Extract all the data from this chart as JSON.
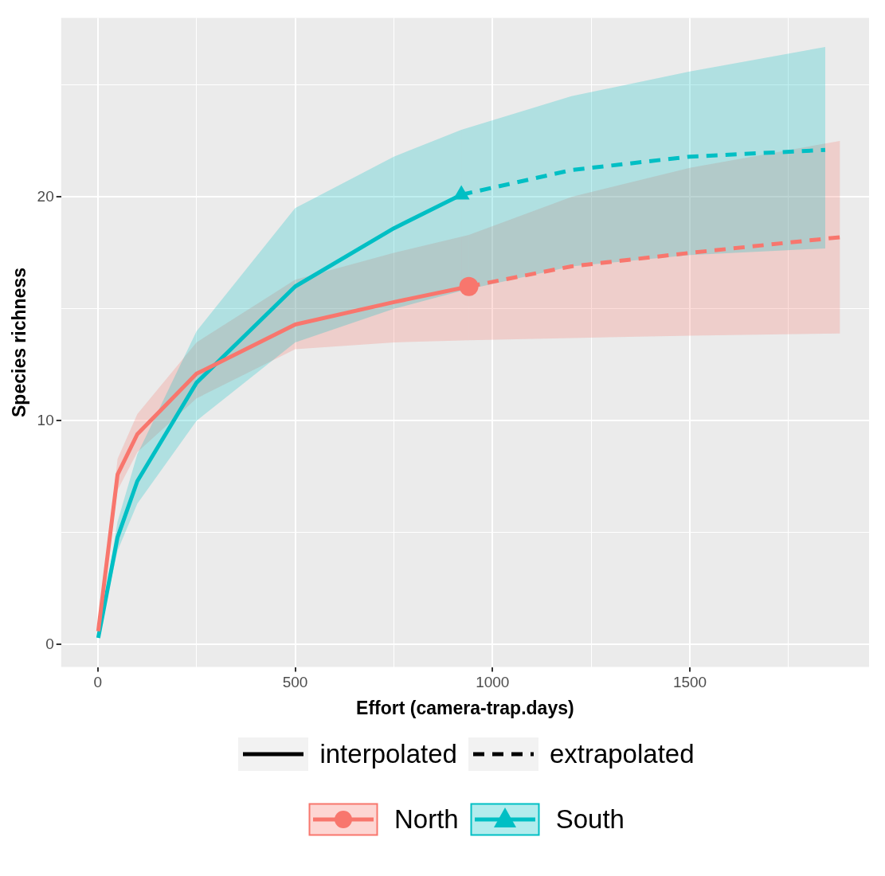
{
  "chart_data": {
    "type": "line",
    "xlabel": "Effort (camera-trap.days)",
    "ylabel": "Species richness",
    "xlim": [
      -93,
      1954
    ],
    "ylim": [
      -1.0,
      28.0
    ],
    "xticks": [
      0,
      {
        "value": 250,
        "label": null
      },
      500,
      {
        "value": 750,
        "label": null
      },
      1000,
      {
        "value": 1250,
        "label": null
      },
      1500,
      {
        "value": 1750,
        "label": null
      }
    ],
    "yticks": [
      0,
      {
        "value": 5,
        "label": null
      },
      10,
      {
        "value": 15,
        "label": null
      },
      20,
      {
        "value": 25,
        "label": null
      }
    ],
    "grid": true,
    "legend": "bottom",
    "annotations": [
      "interpolated",
      "extrapolated"
    ],
    "series": [
      {
        "name": "North",
        "line_style": "solid",
        "color": "#f8766d",
        "x": [
          1,
          50,
          100,
          250,
          500,
          750,
          940
        ],
        "values": [
          0.6,
          7.6,
          9.4,
          12.1,
          14.3,
          15.3,
          16.0
        ],
        "lower": [
          0.6,
          6.9,
          8.6,
          11.0,
          13.2,
          13.5,
          13.6
        ],
        "upper": [
          0.6,
          8.3,
          10.3,
          13.5,
          16.3,
          17.5,
          18.3
        ]
      },
      {
        "name": "South",
        "line_style": "solid",
        "color": "#00bfc4",
        "x": [
          1,
          50,
          100,
          250,
          500,
          750,
          921
        ],
        "values": [
          0.3,
          4.8,
          7.3,
          11.7,
          16.0,
          18.6,
          20.1
        ],
        "lower": [
          0.3,
          4.2,
          6.3,
          10.0,
          13.5,
          15.0,
          15.8
        ],
        "upper": [
          0.3,
          5.5,
          8.5,
          14.0,
          19.5,
          21.8,
          23.0
        ]
      },
      {
        "line_style": "dashed",
        "color": "#f8766d",
        "x": [
          940,
          1200,
          1500,
          1880
        ],
        "values": [
          16.0,
          16.9,
          17.5,
          18.2
        ],
        "lower": [
          13.6,
          13.7,
          13.8,
          13.9
        ],
        "upper": [
          18.3,
          20.0,
          21.3,
          22.5
        ]
      },
      {
        "line_style": "dashed",
        "color": "#00bfc4",
        "x": [
          921,
          1200,
          1500,
          1843
        ],
        "values": [
          20.1,
          21.2,
          21.8,
          22.1
        ],
        "lower": [
          15.8,
          16.9,
          17.4,
          17.7
        ],
        "upper": [
          23.0,
          24.5,
          25.6,
          26.7
        ]
      },
      {
        "type": "scatter",
        "marker": "circle",
        "color": "#f8766d",
        "x": [
          940
        ],
        "values": [
          16.0
        ]
      },
      {
        "type": "scatter",
        "marker": "triangle",
        "color": "#00bfc4",
        "x": [
          921
        ],
        "values": [
          20.1
        ]
      }
    ]
  }
}
